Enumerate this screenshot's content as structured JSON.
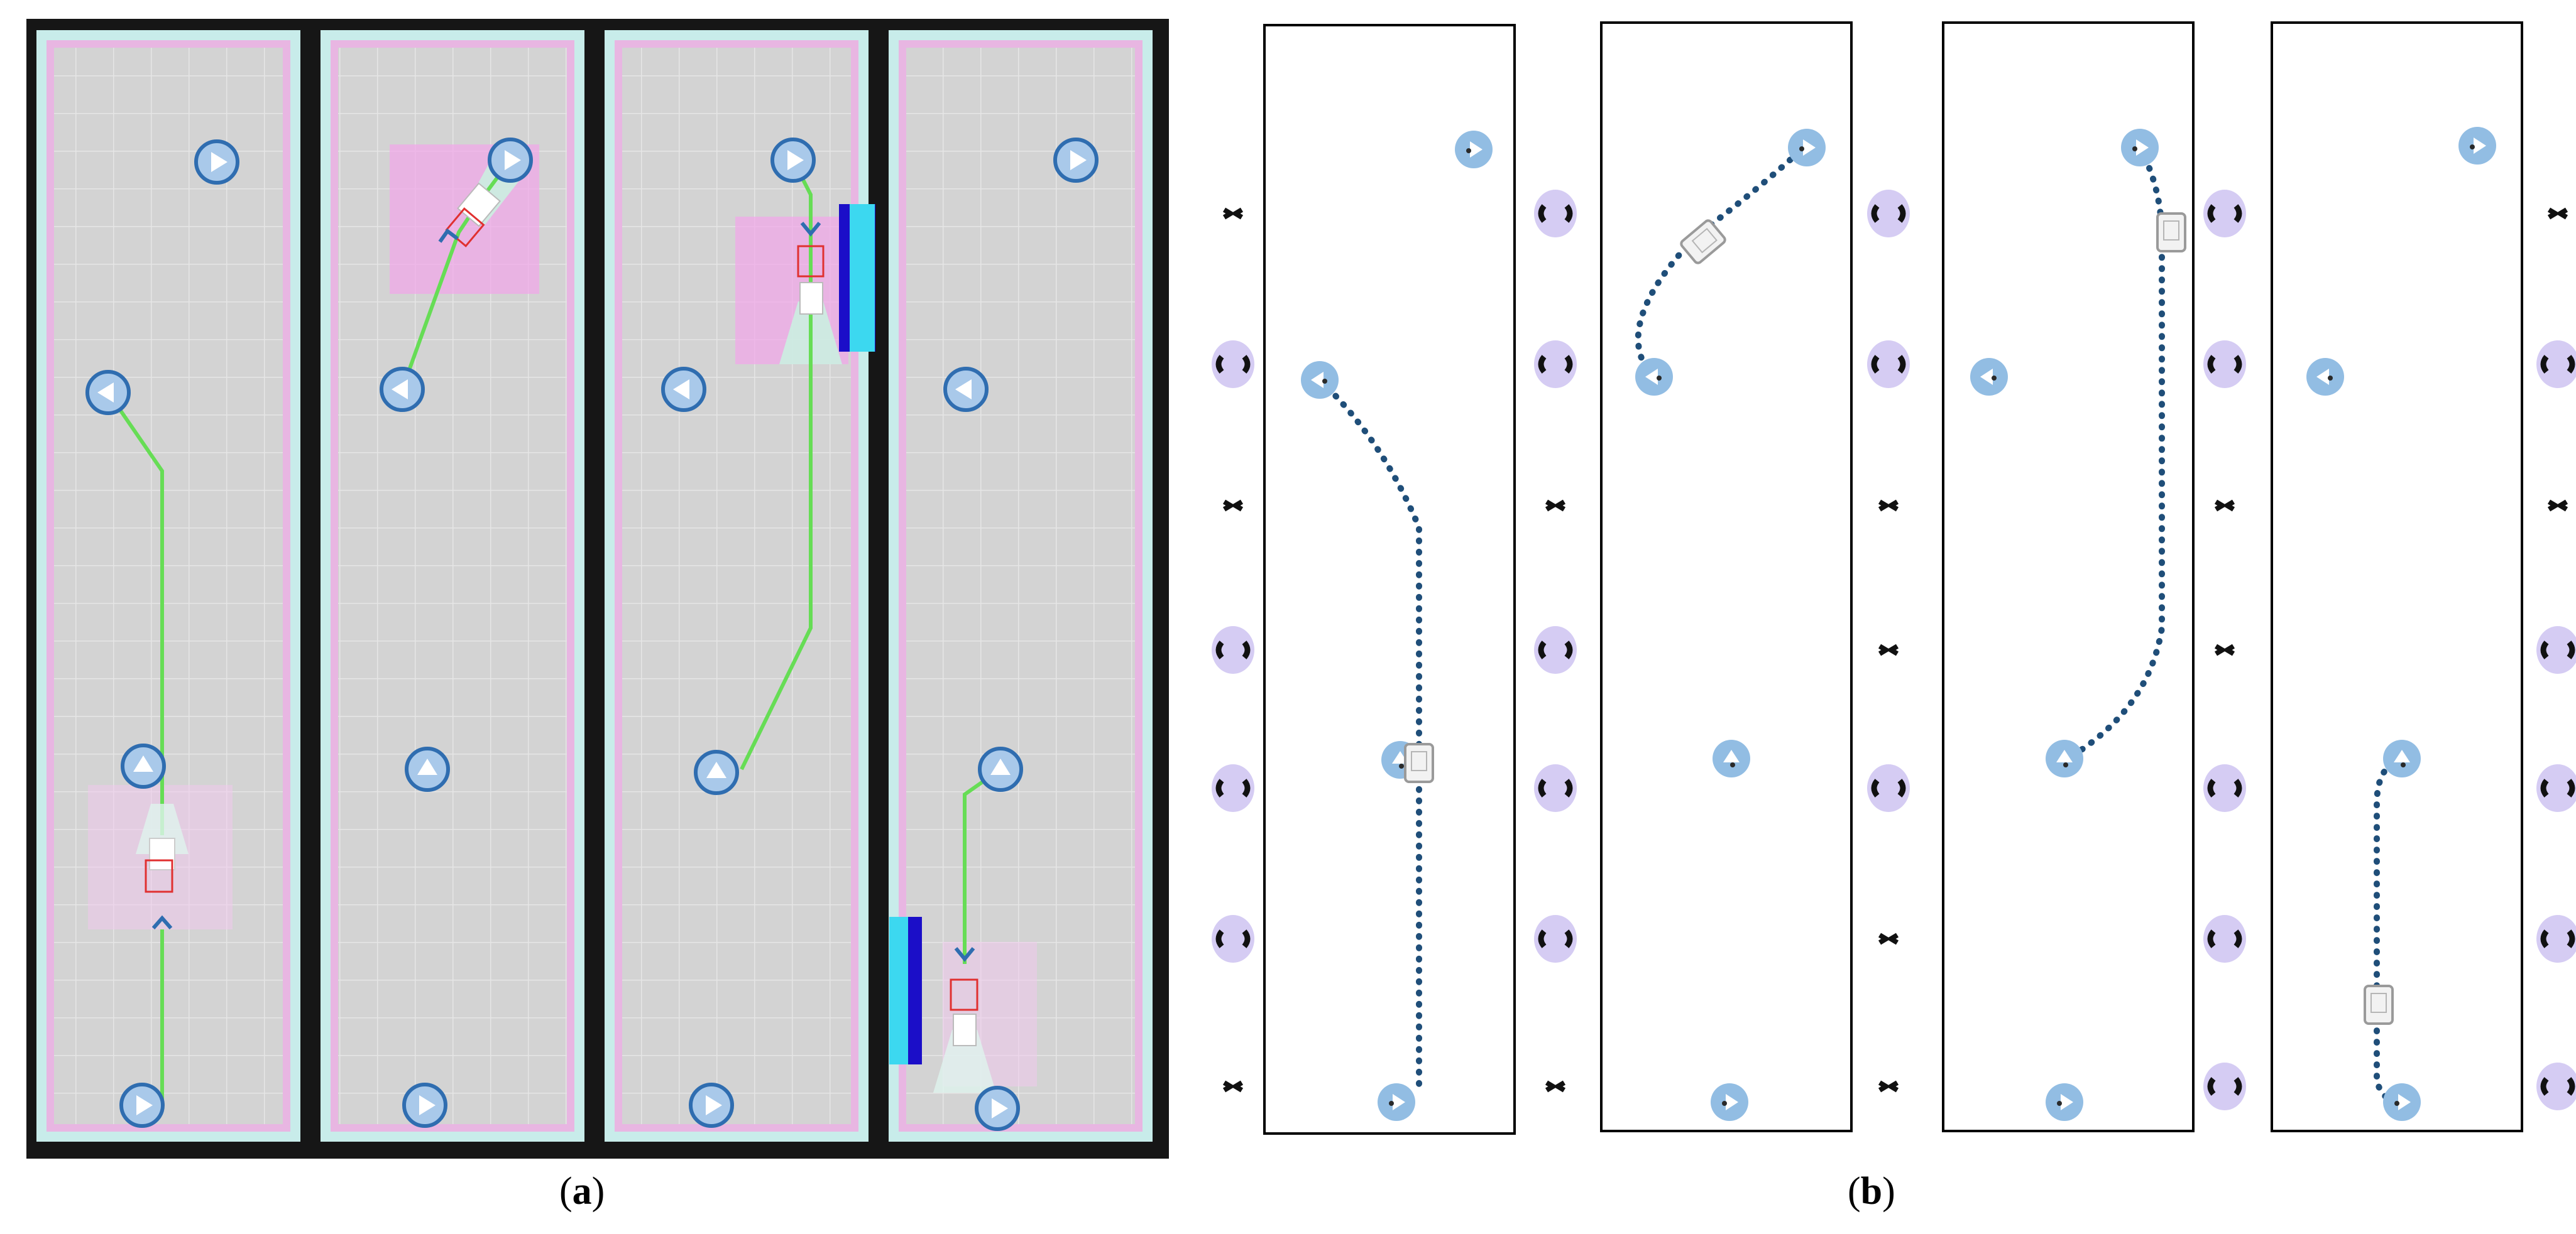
{
  "captions": {
    "a": {
      "open": "(",
      "letter": "a",
      "close": ")"
    },
    "b": {
      "open": "(",
      "letter": "b",
      "close": ")"
    }
  },
  "colors": {
    "sim_bg": "#161616",
    "floor": "#d3d3d3",
    "grid": "#e4e4e4",
    "wall_outer": "#c8ecea",
    "wall_inner": "#e8b6e2",
    "path_green": "#66dd55",
    "waypoint_fill": "#a9c9ea",
    "waypoint_stroke": "#2f6db0",
    "costmap_pink": "#f0a8e8",
    "laser_blue": "#1b0ec8",
    "laser_cyan": "#3cd8f0",
    "robot_red": "#e03030",
    "map_dot": "#1f4e79",
    "map_waypoint": "#92bde3",
    "rack_black": "#111111",
    "rack_halo": "#c3b6ee"
  },
  "panels_a": [
    {
      "name": "sim-frame-1"
    },
    {
      "name": "sim-frame-2"
    },
    {
      "name": "sim-frame-3"
    },
    {
      "name": "sim-frame-4"
    }
  ],
  "panels_b": [
    {
      "name": "map-frame-1"
    },
    {
      "name": "map-frame-2"
    },
    {
      "name": "map-frame-3"
    },
    {
      "name": "map-frame-4"
    }
  ]
}
